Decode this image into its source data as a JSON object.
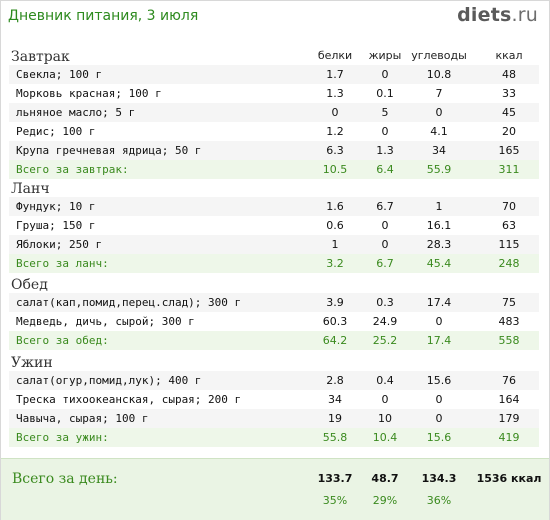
{
  "header": {
    "title": "Дневник питания, 3 июля",
    "logo_main": "diets",
    "logo_tld": ".ru"
  },
  "columns": {
    "protein": "белки",
    "fat": "жиры",
    "carbs": "углеводы",
    "kcal": "ккал"
  },
  "sections": [
    {
      "title": "Завтрак",
      "items": [
        {
          "name": "Свекла; 100 г",
          "protein": "1.7",
          "fat": "0",
          "carbs": "10.8",
          "kcal": "48"
        },
        {
          "name": "Морковь красная; 100 г",
          "protein": "1.3",
          "fat": "0.1",
          "carbs": "7",
          "kcal": "33"
        },
        {
          "name": "льняное масло; 5 г",
          "protein": "0",
          "fat": "5",
          "carbs": "0",
          "kcal": "45"
        },
        {
          "name": "Редис; 100 г",
          "protein": "1.2",
          "fat": "0",
          "carbs": "4.1",
          "kcal": "20"
        },
        {
          "name": "Крупа гречневая ядрица; 50 г",
          "protein": "6.3",
          "fat": "1.3",
          "carbs": "34",
          "kcal": "165"
        }
      ],
      "total": {
        "name": "Всего за завтрак:",
        "protein": "10.5",
        "fat": "6.4",
        "carbs": "55.9",
        "kcal": "311"
      }
    },
    {
      "title": "Ланч",
      "items": [
        {
          "name": "Фундук; 10 г",
          "protein": "1.6",
          "fat": "6.7",
          "carbs": "1",
          "kcal": "70"
        },
        {
          "name": "Груша; 150 г",
          "protein": "0.6",
          "fat": "0",
          "carbs": "16.1",
          "kcal": "63"
        },
        {
          "name": "Яблоки; 250 г",
          "protein": "1",
          "fat": "0",
          "carbs": "28.3",
          "kcal": "115"
        }
      ],
      "total": {
        "name": "Всего за ланч:",
        "protein": "3.2",
        "fat": "6.7",
        "carbs": "45.4",
        "kcal": "248"
      }
    },
    {
      "title": "Обед",
      "items": [
        {
          "name": "салат(кап,помид,перец.слад); 300 г",
          "protein": "3.9",
          "fat": "0.3",
          "carbs": "17.4",
          "kcal": "75"
        },
        {
          "name": "Медведь, дичь, сырой; 300 г",
          "protein": "60.3",
          "fat": "24.9",
          "carbs": "0",
          "kcal": "483"
        }
      ],
      "total": {
        "name": "Всего за обед:",
        "protein": "64.2",
        "fat": "25.2",
        "carbs": "17.4",
        "kcal": "558"
      }
    },
    {
      "title": "Ужин",
      "items": [
        {
          "name": "салат(огур,помид,лук); 400 г",
          "protein": "2.8",
          "fat": "0.4",
          "carbs": "15.6",
          "kcal": "76"
        },
        {
          "name": "Треска тихоокеанская, сырая; 200 г",
          "protein": "34",
          "fat": "0",
          "carbs": "0",
          "kcal": "164"
        },
        {
          "name": "Чавыча, сырая; 100 г",
          "protein": "19",
          "fat": "10",
          "carbs": "0",
          "kcal": "179"
        }
      ],
      "total": {
        "name": "Всего за ужин:",
        "protein": "55.8",
        "fat": "10.4",
        "carbs": "15.6",
        "kcal": "419"
      }
    }
  ],
  "day_total": {
    "label": "Всего за день:",
    "protein": "133.7",
    "fat": "48.7",
    "carbs": "134.3",
    "kcal": "1536 ккал",
    "protein_pct": "35%",
    "fat_pct": "29%",
    "carbs_pct": "36%"
  }
}
